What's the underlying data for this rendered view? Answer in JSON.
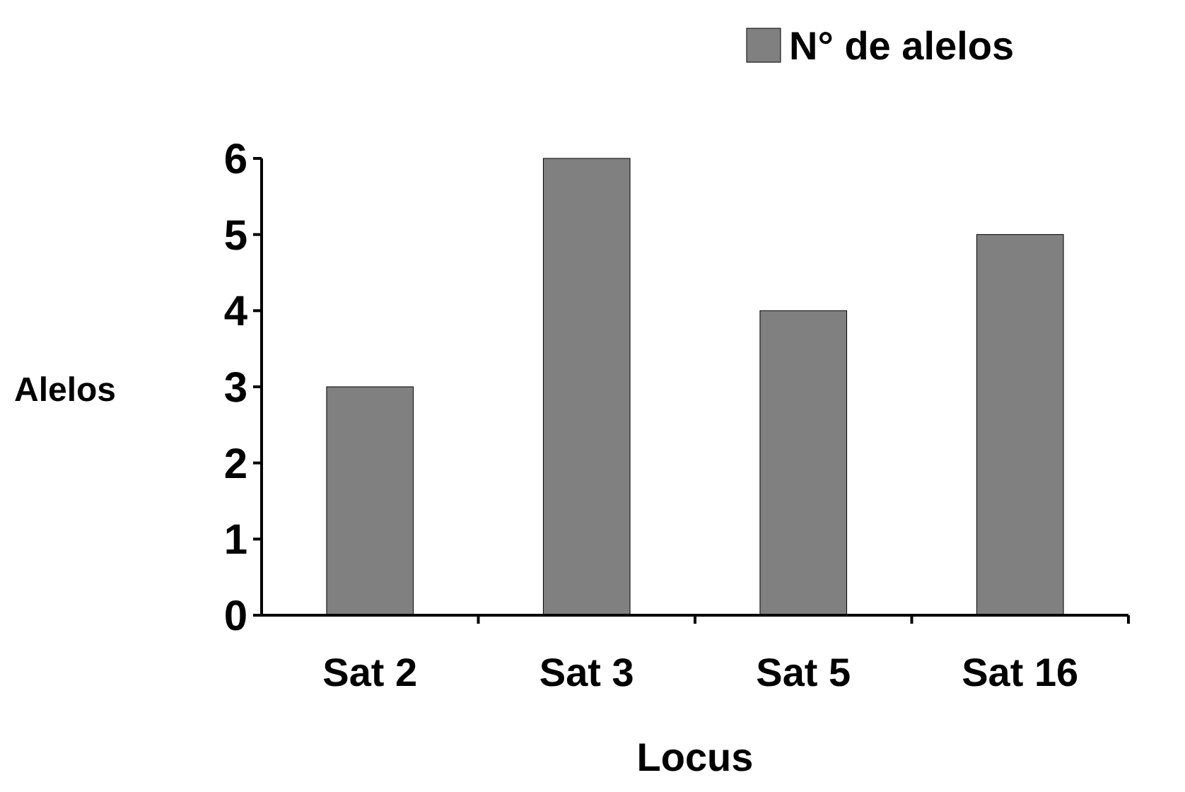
{
  "chart_data": {
    "type": "bar",
    "xlabel": "Locus",
    "ylabel": "Alelos",
    "categories": [
      "Sat 2",
      "Sat 3",
      "Sat 5",
      "Sat 16"
    ],
    "series": [
      {
        "name": "N° de alelos",
        "color": "#808080",
        "values": [
          3,
          6,
          4,
          5
        ]
      }
    ],
    "ylim": [
      0,
      6
    ],
    "yticks": [
      0,
      1,
      2,
      3,
      4,
      5,
      6
    ],
    "legend": "top right"
  }
}
